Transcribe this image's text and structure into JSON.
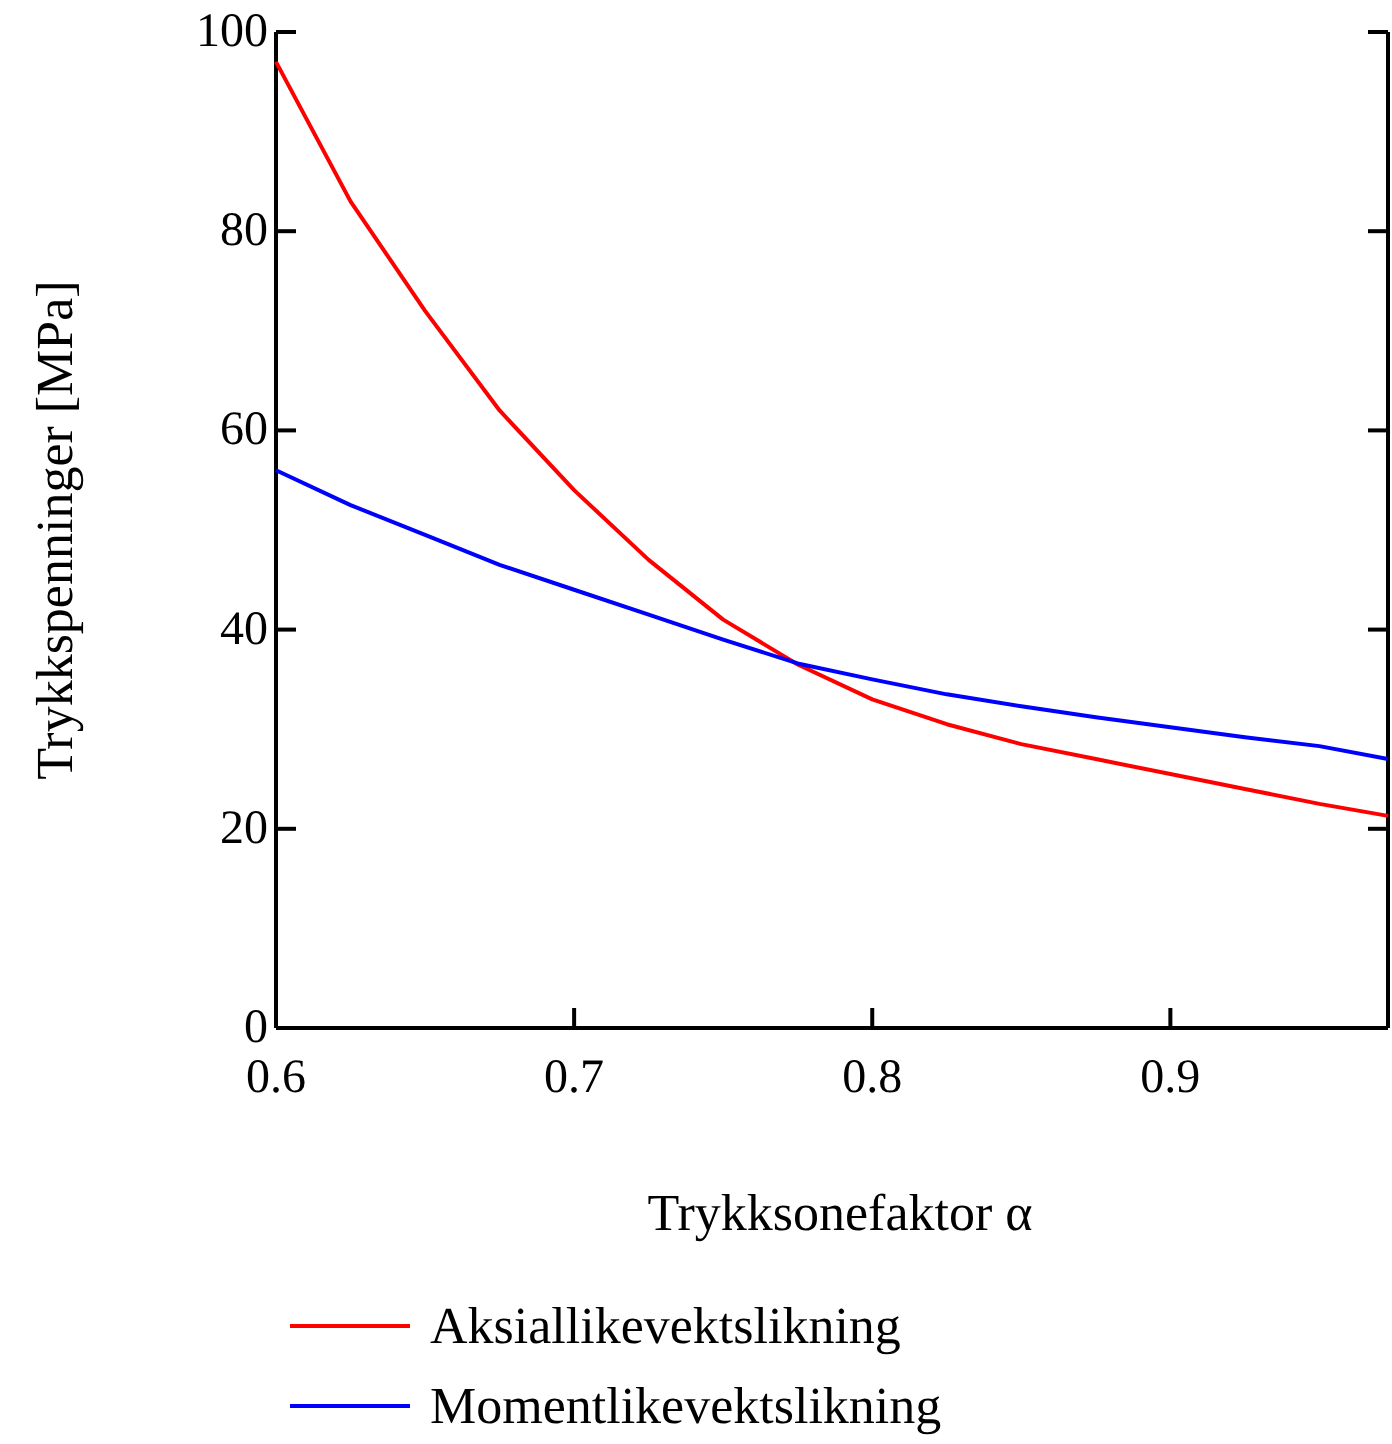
{
  "chart_data": {
    "type": "line",
    "xlabel": "Trykksonefaktor α",
    "ylabel": "Trykkspenninger [MPa]",
    "x": [
      0.6,
      0.625,
      0.65,
      0.675,
      0.7,
      0.725,
      0.75,
      0.775,
      0.8,
      0.825,
      0.85,
      0.875,
      0.9,
      0.925,
      0.95,
      0.973
    ],
    "series": [
      {
        "name": "Aksiallikevektslikning",
        "color": "#ff0000",
        "values": [
          97,
          83,
          72,
          62,
          54,
          47,
          41,
          36.5,
          33,
          30.5,
          28.5,
          27,
          25.5,
          24,
          22.5,
          21.3
        ]
      },
      {
        "name": "Momentlikevektslikning",
        "color": "#0000ff",
        "values": [
          56,
          52.5,
          49.5,
          46.5,
          44,
          41.5,
          39,
          36.6,
          35,
          33.5,
          32.3,
          31.2,
          30.2,
          29.2,
          28.3,
          27
        ]
      }
    ],
    "xlim": [
      0.6,
      0.973
    ],
    "xticks": [
      0.6,
      0.7,
      0.8,
      0.9
    ],
    "ylim": [
      0,
      100
    ],
    "yticks": [
      0,
      20,
      40,
      60,
      80,
      100
    ],
    "grid": false,
    "legend": "bottom",
    "marker": "none",
    "line_style": "solid"
  }
}
